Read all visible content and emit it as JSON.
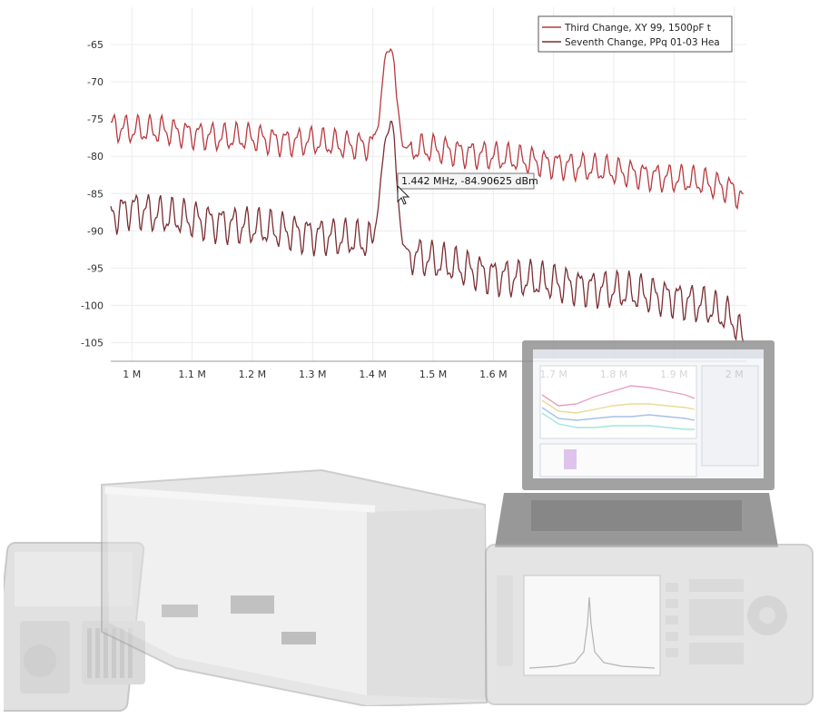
{
  "chart_data": {
    "type": "line",
    "title": "",
    "xlabel": "",
    "ylabel": "",
    "xlim": [
      0.965,
      2.02
    ],
    "ylim": [
      -107.5,
      -60
    ],
    "x_ticks": [
      {
        "value": 1.0,
        "label": "1 M"
      },
      {
        "value": 1.1,
        "label": "1.1 M"
      },
      {
        "value": 1.2,
        "label": "1.2 M"
      },
      {
        "value": 1.3,
        "label": "1.3 M"
      },
      {
        "value": 1.4,
        "label": "1.4 M"
      },
      {
        "value": 1.5,
        "label": "1.5 M"
      },
      {
        "value": 1.6,
        "label": "1.6 M"
      },
      {
        "value": 1.7,
        "label": "1.7 M"
      },
      {
        "value": 1.8,
        "label": "1.8 M"
      },
      {
        "value": 1.9,
        "label": "1.9 M"
      },
      {
        "value": 2.0,
        "label": "2 M"
      }
    ],
    "y_ticks": [
      {
        "value": -65,
        "label": "-65"
      },
      {
        "value": -70,
        "label": "-70"
      },
      {
        "value": -75,
        "label": "-75"
      },
      {
        "value": -80,
        "label": "-80"
      },
      {
        "value": -85,
        "label": "-85"
      },
      {
        "value": -90,
        "label": "-90"
      },
      {
        "value": -95,
        "label": "-95"
      },
      {
        "value": -100,
        "label": "-100"
      },
      {
        "value": -105,
        "label": "-105"
      }
    ],
    "grid": true,
    "legend": {
      "position": "top-right"
    },
    "series": [
      {
        "name": "Third Change, XY 99, 1500pF t",
        "color": "#b8393f",
        "x": [
          0.965,
          1.0,
          1.05,
          1.1,
          1.15,
          1.2,
          1.25,
          1.3,
          1.35,
          1.4,
          1.41,
          1.42,
          1.43,
          1.435,
          1.44,
          1.45,
          1.46,
          1.5,
          1.55,
          1.6,
          1.65,
          1.7,
          1.75,
          1.8,
          1.85,
          1.9,
          1.95,
          2.0,
          2.015
        ],
        "y": [
          -76,
          -76.5,
          -76.5,
          -77,
          -77.5,
          -77.5,
          -78,
          -78,
          -78.5,
          -78.5,
          -75,
          -67,
          -65,
          -67,
          -73,
          -78.5,
          -79,
          -79,
          -79.5,
          -80,
          -80.5,
          -81,
          -81.5,
          -82,
          -82.5,
          -83,
          -83.5,
          -84.5,
          -86
        ]
      },
      {
        "name": "Seventh Change, PPq 01-03 Hea",
        "color": "#7a2e33",
        "x": [
          0.965,
          1.0,
          1.05,
          1.1,
          1.15,
          1.2,
          1.25,
          1.3,
          1.35,
          1.4,
          1.41,
          1.42,
          1.43,
          1.435,
          1.44,
          1.45,
          1.46,
          1.5,
          1.55,
          1.6,
          1.65,
          1.7,
          1.75,
          1.8,
          1.85,
          1.9,
          1.95,
          2.0,
          2.015
        ],
        "y": [
          -88,
          -87,
          -88,
          -88.5,
          -89,
          -89.5,
          -90,
          -90.5,
          -91,
          -91.5,
          -86,
          -78,
          -75,
          -77,
          -84,
          -92,
          -93,
          -94,
          -95,
          -96,
          -96.5,
          -97,
          -97.5,
          -98,
          -98.5,
          -99,
          -100,
          -102,
          -105
        ]
      }
    ],
    "annotation": {
      "x": 1.442,
      "y": -84.90625,
      "label": "1.442 MHz, -84.90625 dBm"
    }
  }
}
